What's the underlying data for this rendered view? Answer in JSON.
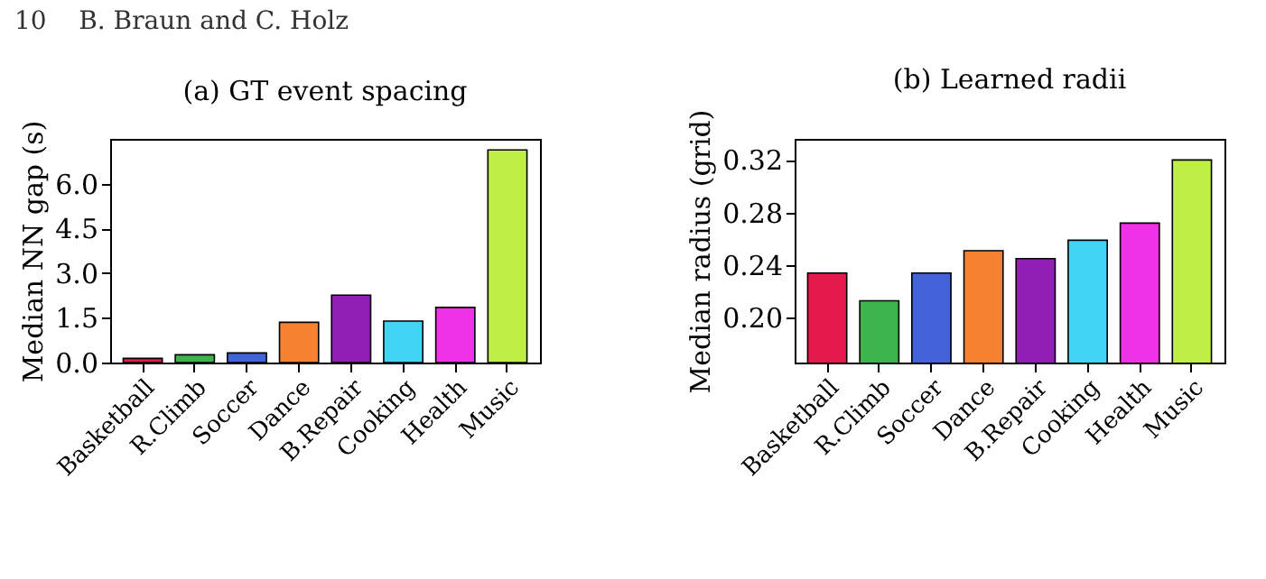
{
  "chart_data": [
    {
      "type": "bar",
      "title": "(a) GT event spacing",
      "ylabel": "Median NN gap (s)",
      "annotations": [
        "10    B. Braun and C. Holz"
      ],
      "categories": [
        "Basketball",
        "R.Climb",
        "Soccer",
        "Dance",
        "B.Repair",
        "Cooking",
        "Health",
        "Music"
      ],
      "values": [
        0.14,
        0.26,
        0.32,
        1.35,
        2.26,
        1.39,
        1.85,
        7.13
      ],
      "colors": [
        "#e31a4b",
        "#3cb44b",
        "#4363d8",
        "#f58231",
        "#911eb4",
        "#42d4f4",
        "#f032e6",
        "#bfef45"
      ],
      "ylim": [
        0,
        7.5
      ],
      "yticks": [
        {
          "value": 0,
          "label": "0.0"
        },
        {
          "value": 1.5,
          "label": "1.5"
        },
        {
          "value": 3,
          "label": "3.0"
        },
        {
          "value": 4.5,
          "label": "4.5"
        },
        {
          "value": 6,
          "label": "6.0"
        }
      ],
      "grid": false
    },
    {
      "type": "bar",
      "title": "(b) Learned radii",
      "ylabel": "Median radius (grid)",
      "categories": [
        "Basketball",
        "R.Climb",
        "Soccer",
        "Dance",
        "B.Repair",
        "Cooking",
        "Health",
        "Music"
      ],
      "values": [
        0.234,
        0.213,
        0.234,
        0.251,
        0.245,
        0.259,
        0.272,
        0.32
      ],
      "colors": [
        "#e31a4b",
        "#3cb44b",
        "#4363d8",
        "#f58231",
        "#911eb4",
        "#42d4f4",
        "#f032e6",
        "#bfef45"
      ],
      "ylim": [
        0.166,
        0.336
      ],
      "yticks": [
        {
          "value": 0.2,
          "label": "0.20"
        },
        {
          "value": 0.24,
          "label": "0.24"
        },
        {
          "value": 0.28,
          "label": "0.28"
        },
        {
          "value": 0.32,
          "label": "0.32"
        }
      ],
      "grid": false
    }
  ]
}
